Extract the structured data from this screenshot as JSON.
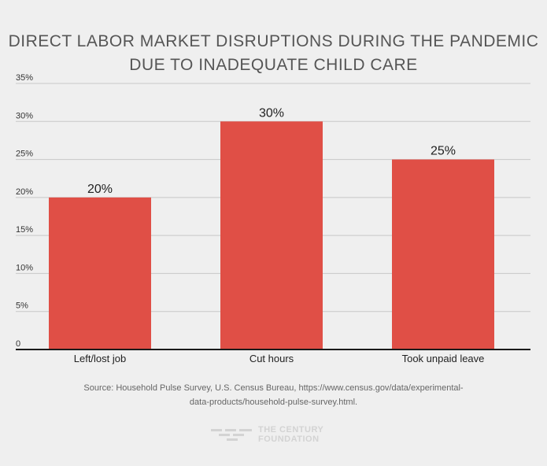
{
  "chart_data": {
    "type": "bar",
    "title_lines": [
      "DIRECT LABOR MARKET DISRUPTIONS DURING THE PANDEMIC",
      "DUE TO INADEQUATE CHILD CARE"
    ],
    "categories": [
      "Left/lost job",
      "Cut hours",
      "Took unpaid leave"
    ],
    "values": [
      20,
      30,
      25
    ],
    "value_labels": [
      "20%",
      "30%",
      "25%"
    ],
    "ylim": [
      0,
      35
    ],
    "y_ticks": [
      0,
      5,
      10,
      15,
      20,
      25,
      30,
      35
    ],
    "y_tick_labels": [
      "0",
      "5%",
      "10%",
      "15%",
      "20%",
      "25%",
      "30%",
      "35%"
    ],
    "xlabel": "",
    "ylabel": "",
    "grid": true,
    "bar_color": "#e04f46",
    "grid_color": "#c8c8c8",
    "axis_color": "#1a1a1a"
  },
  "source": {
    "lines": [
      "Source: Household Pulse Survey, U.S. Census Bureau, https://www.census.gov/data/experimental-",
      "data-products/household-pulse-survey.html."
    ]
  },
  "brand": {
    "icon": "century-foundation-logo-icon",
    "line1": "THE CENTURY",
    "line2": "FOUNDATION"
  }
}
